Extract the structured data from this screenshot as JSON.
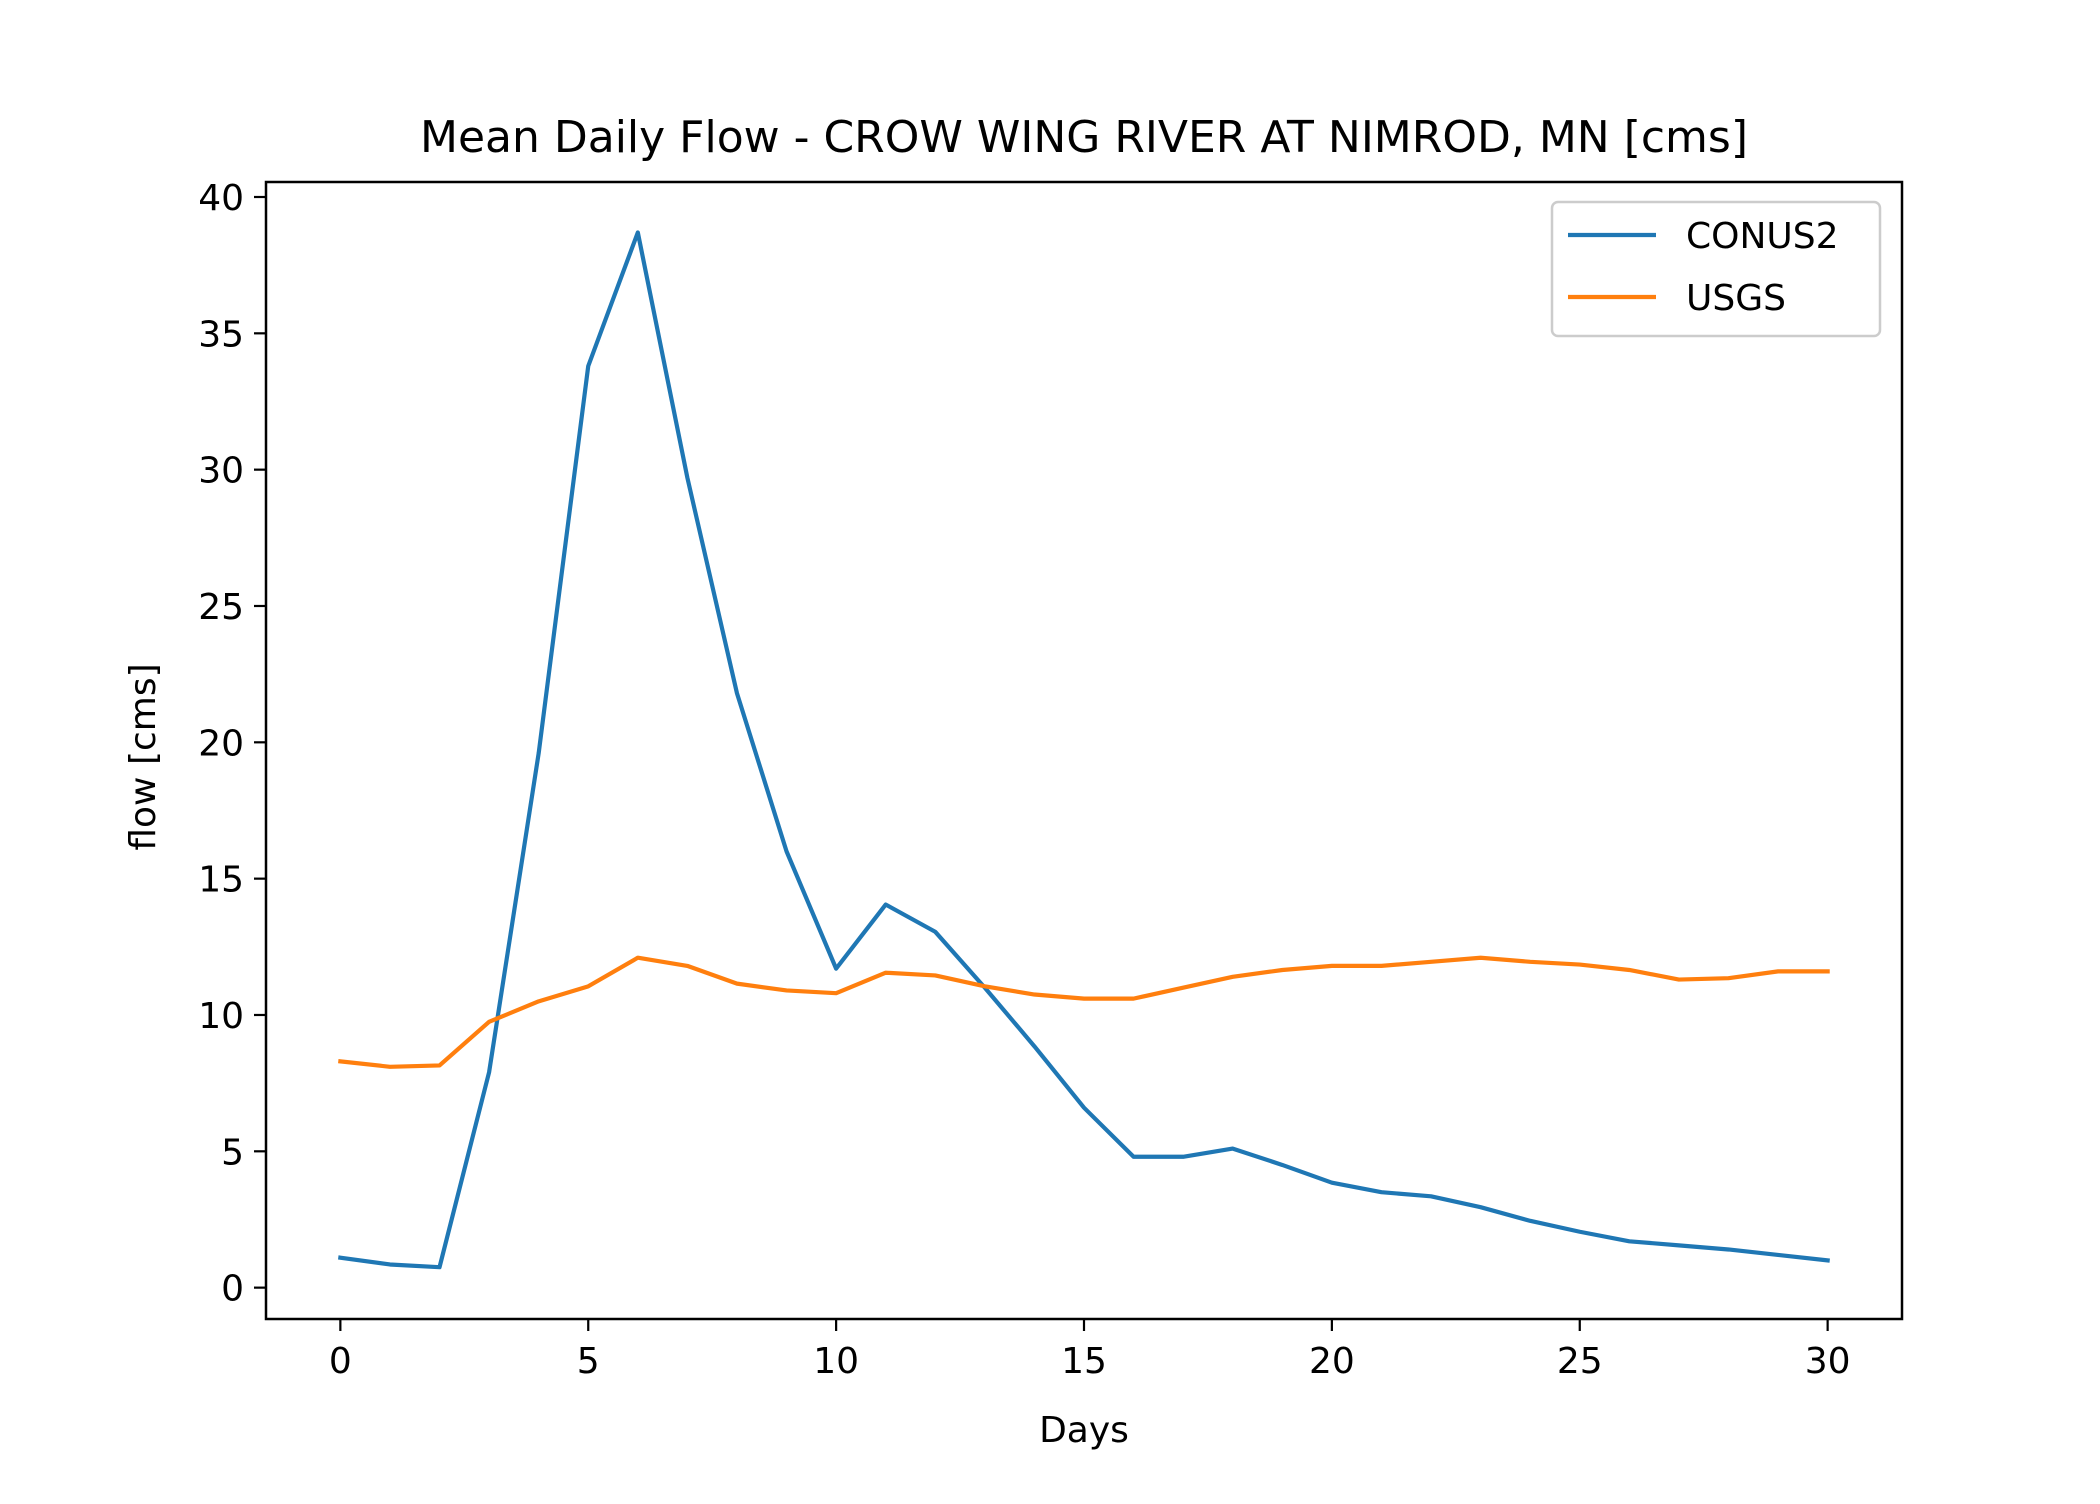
{
  "chart_data": {
    "type": "line",
    "title": "Mean Daily Flow - CROW WING RIVER AT NIMROD, MN [cms]",
    "xlabel": "Days",
    "ylabel": "flow [cms]",
    "xlim": [
      -1.5,
      31.5
    ],
    "ylim": [
      -1.15,
      40.55
    ],
    "xticks": [
      0,
      5,
      10,
      15,
      20,
      25,
      30
    ],
    "yticks": [
      0,
      5,
      10,
      15,
      20,
      25,
      30,
      35,
      40
    ],
    "grid": false,
    "legend": "top-right",
    "x": [
      0,
      1,
      2,
      3,
      4,
      5,
      6,
      7,
      8,
      9,
      10,
      11,
      12,
      13,
      14,
      15,
      16,
      17,
      18,
      19,
      20,
      21,
      22,
      23,
      24,
      25,
      26,
      27,
      28,
      29,
      30
    ],
    "series": [
      {
        "name": "CONUS2",
        "color": "#1f77b4",
        "values": [
          1.1,
          0.85,
          0.75,
          7.9,
          19.6,
          33.8,
          38.7,
          29.7,
          21.8,
          16.0,
          11.7,
          14.05,
          13.05,
          11.0,
          8.85,
          6.6,
          4.8,
          4.8,
          5.1,
          4.5,
          3.85,
          3.5,
          3.35,
          2.95,
          2.45,
          2.05,
          1.7,
          1.55,
          1.4,
          1.2,
          1.0
        ]
      },
      {
        "name": "USGS",
        "color": "#ff7f0e",
        "values": [
          8.3,
          8.1,
          8.15,
          9.75,
          10.5,
          11.05,
          12.1,
          11.8,
          11.15,
          10.9,
          10.8,
          11.55,
          11.45,
          11.05,
          10.75,
          10.6,
          10.6,
          11.0,
          11.4,
          11.65,
          11.8,
          11.8,
          11.95,
          12.1,
          11.95,
          11.85,
          11.65,
          11.3,
          11.35,
          11.6,
          11.6
        ]
      }
    ]
  }
}
